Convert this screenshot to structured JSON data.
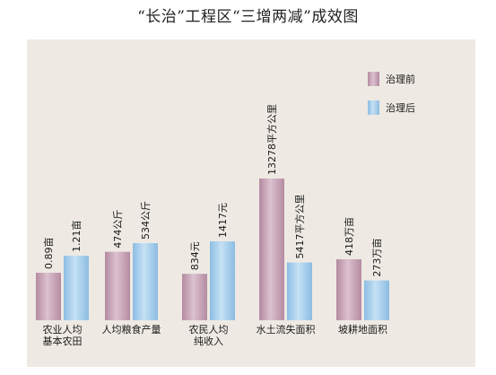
{
  "title": "“长治”工程区“三增两减”成效图",
  "colors": {
    "panel": "#eeeae3",
    "before": "#c9a4b8",
    "after": "#a4ccea"
  },
  "chart_data": {
    "type": "bar",
    "title": "“长治”工程区“三增两减”成效图",
    "legend_position": "top-right",
    "series_legend": [
      "治理前",
      "治理后"
    ],
    "groups": [
      {
        "category_lines": [
          "农业人均",
          "基本农田"
        ],
        "before": {
          "value": 0.89,
          "label": "0.89亩"
        },
        "after": {
          "value": 1.21,
          "label": "1.21亩"
        }
      },
      {
        "category_lines": [
          "人均粮食产量"
        ],
        "before": {
          "value": 474,
          "label": "474公斤"
        },
        "after": {
          "value": 534,
          "label": "534公斤"
        }
      },
      {
        "category_lines": [
          "农民人均",
          "纯收入"
        ],
        "before": {
          "value": 834,
          "label": "834元"
        },
        "after": {
          "value": 1417,
          "label": "1417元"
        }
      },
      {
        "category_lines": [
          "水土流失面积"
        ],
        "before": {
          "value": 13278,
          "label": "13278平方公里"
        },
        "after": {
          "value": 5417,
          "label": "5417平方公里"
        }
      },
      {
        "category_lines": [
          "坡耕地面积"
        ],
        "before": {
          "value": 418,
          "label": "418万亩"
        },
        "after": {
          "value": 273,
          "label": "273万亩"
        }
      }
    ]
  }
}
